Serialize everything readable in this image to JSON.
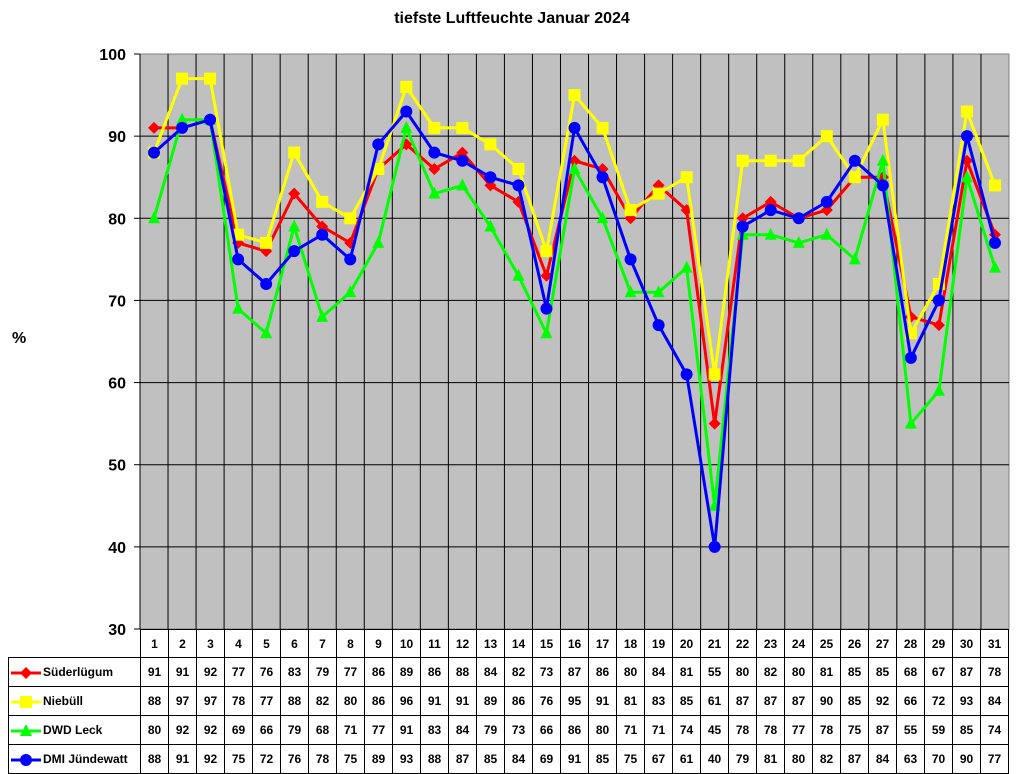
{
  "chart_data": {
    "type": "line",
    "title": "tiefste Luftfeuchte Januar 2024",
    "xlabel": "",
    "ylabel": "%",
    "ylim": [
      30,
      100
    ],
    "yticks": [
      30,
      40,
      50,
      60,
      70,
      80,
      90,
      100
    ],
    "grid": true,
    "legend_position": "data-table",
    "categories": [
      "1",
      "2",
      "3",
      "4",
      "5",
      "6",
      "7",
      "8",
      "9",
      "10",
      "11",
      "12",
      "13",
      "14",
      "15",
      "16",
      "17",
      "18",
      "19",
      "20",
      "21",
      "22",
      "23",
      "24",
      "25",
      "26",
      "27",
      "28",
      "29",
      "30",
      "31"
    ],
    "series": [
      {
        "name": "Süderlügum",
        "color": "#ff0000",
        "marker": "diamond",
        "values": [
          91,
          91,
          92,
          77,
          76,
          83,
          79,
          77,
          86,
          89,
          86,
          88,
          84,
          82,
          73,
          87,
          86,
          80,
          84,
          81,
          55,
          80,
          82,
          80,
          81,
          85,
          85,
          68,
          67,
          87,
          78
        ]
      },
      {
        "name": "Niebüll",
        "color": "#ffff00",
        "marker": "square",
        "values": [
          88,
          97,
          97,
          78,
          77,
          88,
          82,
          80,
          86,
          96,
          91,
          91,
          89,
          86,
          76,
          95,
          91,
          81,
          83,
          85,
          61,
          87,
          87,
          87,
          90,
          85,
          92,
          66,
          72,
          93,
          84
        ]
      },
      {
        "name": "DWD Leck",
        "color": "#00ff00",
        "marker": "triangle",
        "values": [
          80,
          92,
          92,
          69,
          66,
          79,
          68,
          71,
          77,
          91,
          83,
          84,
          79,
          73,
          66,
          86,
          80,
          71,
          71,
          74,
          45,
          78,
          78,
          77,
          78,
          75,
          87,
          55,
          59,
          85,
          74
        ]
      },
      {
        "name": "DMI Jündewatt",
        "color": "#0000ff",
        "marker": "circle",
        "values": [
          88,
          91,
          92,
          75,
          72,
          76,
          78,
          75,
          89,
          93,
          88,
          87,
          85,
          84,
          69,
          91,
          85,
          75,
          67,
          61,
          40,
          79,
          81,
          80,
          82,
          87,
          84,
          63,
          70,
          90,
          77
        ]
      }
    ]
  },
  "style": {
    "plot_bg": "#c0c0c0",
    "grid_color": "#000000"
  }
}
